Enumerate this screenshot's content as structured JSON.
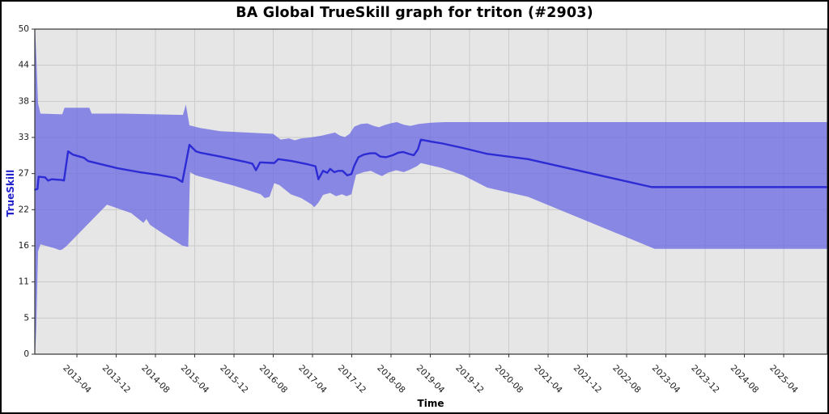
{
  "figure": {
    "title": "BA Global TrueSkill graph for triton (#2903)"
  },
  "chart_data": {
    "type": "line",
    "title": "BA Global TrueSkill graph for triton (#2903)",
    "xlabel": "Time",
    "ylabel": "TrueSkill",
    "legend": "none",
    "grid": true,
    "xlim": [
      2012.535,
      2025.992
    ],
    "ylim": [
      0,
      50
    ],
    "x_ticks": [
      {
        "year": 2013.25,
        "label": "2013-04"
      },
      {
        "year": 2013.9167,
        "label": "2013-12"
      },
      {
        "year": 2014.5833,
        "label": "2014-08"
      },
      {
        "year": 2015.25,
        "label": "2015-04"
      },
      {
        "year": 2015.9167,
        "label": "2015-12"
      },
      {
        "year": 2016.5833,
        "label": "2016-08"
      },
      {
        "year": 2017.25,
        "label": "2017-04"
      },
      {
        "year": 2017.9167,
        "label": "2017-12"
      },
      {
        "year": 2018.5833,
        "label": "2018-08"
      },
      {
        "year": 2019.25,
        "label": "2019-04"
      },
      {
        "year": 2019.9167,
        "label": "2019-12"
      },
      {
        "year": 2020.5833,
        "label": "2020-08"
      },
      {
        "year": 2021.25,
        "label": "2021-04"
      },
      {
        "year": 2021.9167,
        "label": "2021-12"
      },
      {
        "year": 2022.5833,
        "label": "2022-08"
      },
      {
        "year": 2023.25,
        "label": "2023-04"
      },
      {
        "year": 2023.9167,
        "label": "2023-12"
      },
      {
        "year": 2024.5833,
        "label": "2024-08"
      },
      {
        "year": 2025.25,
        "label": "2025-04"
      }
    ],
    "y_ticks": [
      {
        "value": 0,
        "label": "0"
      },
      {
        "value": 5.5556,
        "label": "5"
      },
      {
        "value": 11.1111,
        "label": "11"
      },
      {
        "value": 16.6667,
        "label": "16"
      },
      {
        "value": 22.2222,
        "label": "22"
      },
      {
        "value": 27.7778,
        "label": "27"
      },
      {
        "value": 33.3333,
        "label": "33"
      },
      {
        "value": 38.8889,
        "label": "38"
      },
      {
        "value": 44.4444,
        "label": "44"
      },
      {
        "value": 50,
        "label": "50"
      }
    ],
    "series": [
      {
        "name": "uncertainty-band",
        "type": "band",
        "fill": "rgba(100,98,226,0.72)",
        "top": [
          [
            2012.54,
            50
          ],
          [
            2012.56,
            46
          ],
          [
            2012.59,
            38.6
          ],
          [
            2012.63,
            37.0
          ],
          [
            2013.0,
            36.9
          ],
          [
            2013.04,
            37.9
          ],
          [
            2013.46,
            37.9
          ],
          [
            2013.5,
            37.0
          ],
          [
            2014.03,
            37.0
          ],
          [
            2015.05,
            36.8
          ],
          [
            2015.1,
            38.4
          ],
          [
            2015.16,
            35.2
          ],
          [
            2015.34,
            34.8
          ],
          [
            2015.68,
            34.3
          ],
          [
            2016.58,
            33.9
          ],
          [
            2016.71,
            33.0
          ],
          [
            2016.85,
            33.2
          ],
          [
            2016.95,
            32.9
          ],
          [
            2017.06,
            33.2
          ],
          [
            2017.19,
            33.3
          ],
          [
            2017.4,
            33.6
          ],
          [
            2017.54,
            33.9
          ],
          [
            2017.63,
            34.1
          ],
          [
            2017.72,
            33.6
          ],
          [
            2017.8,
            33.4
          ],
          [
            2017.88,
            33.9
          ],
          [
            2017.96,
            35.0
          ],
          [
            2018.07,
            35.4
          ],
          [
            2018.18,
            35.5
          ],
          [
            2018.29,
            35.1
          ],
          [
            2018.38,
            34.9
          ],
          [
            2018.46,
            35.2
          ],
          [
            2018.57,
            35.5
          ],
          [
            2018.68,
            35.7
          ],
          [
            2018.8,
            35.3
          ],
          [
            2018.91,
            35.1
          ],
          [
            2019.05,
            35.4
          ],
          [
            2019.26,
            35.6
          ],
          [
            2019.5,
            35.7
          ],
          [
            2025.99,
            35.7
          ]
        ],
        "bottom": [
          [
            2012.54,
            0
          ],
          [
            2012.56,
            4
          ],
          [
            2012.59,
            15.8
          ],
          [
            2012.63,
            16.9
          ],
          [
            2012.87,
            16.3
          ],
          [
            2012.96,
            16.0
          ],
          [
            2013.0,
            16.1
          ],
          [
            2013.07,
            16.6
          ],
          [
            2013.76,
            23.0
          ],
          [
            2014.17,
            21.7
          ],
          [
            2014.38,
            20.2
          ],
          [
            2014.43,
            20.8
          ],
          [
            2014.49,
            19.9
          ],
          [
            2014.72,
            18.5
          ],
          [
            2015.04,
            16.7
          ],
          [
            2015.14,
            16.5
          ],
          [
            2015.17,
            28.0
          ],
          [
            2015.27,
            27.5
          ],
          [
            2015.92,
            25.9
          ],
          [
            2016.37,
            24.6
          ],
          [
            2016.44,
            24.0
          ],
          [
            2016.52,
            24.2
          ],
          [
            2016.6,
            26.3
          ],
          [
            2016.69,
            26.0
          ],
          [
            2016.88,
            24.6
          ],
          [
            2017.06,
            24.0
          ],
          [
            2017.24,
            23.0
          ],
          [
            2017.28,
            22.6
          ],
          [
            2017.35,
            23.3
          ],
          [
            2017.43,
            24.5
          ],
          [
            2017.55,
            24.8
          ],
          [
            2017.65,
            24.3
          ],
          [
            2017.75,
            24.6
          ],
          [
            2017.83,
            24.3
          ],
          [
            2017.91,
            24.6
          ],
          [
            2017.99,
            27.6
          ],
          [
            2018.12,
            28.0
          ],
          [
            2018.24,
            28.2
          ],
          [
            2018.35,
            27.7
          ],
          [
            2018.43,
            27.4
          ],
          [
            2018.53,
            27.9
          ],
          [
            2018.67,
            28.3
          ],
          [
            2018.8,
            28.0
          ],
          [
            2018.91,
            28.4
          ],
          [
            2019.02,
            28.9
          ],
          [
            2019.09,
            29.4
          ],
          [
            2019.46,
            28.6
          ],
          [
            2019.81,
            27.5
          ],
          [
            2020.22,
            25.6
          ],
          [
            2020.91,
            24.2
          ],
          [
            2023.06,
            16.2
          ],
          [
            2025.99,
            16.2
          ]
        ]
      },
      {
        "name": "trueskill-mean",
        "type": "line",
        "color": "#2d2bd4",
        "width": 2.4,
        "points": [
          [
            2012.54,
            25.3
          ],
          [
            2012.58,
            25.4
          ],
          [
            2012.6,
            27.3
          ],
          [
            2012.71,
            27.2
          ],
          [
            2012.76,
            26.7
          ],
          [
            2012.82,
            26.9
          ],
          [
            2012.99,
            26.8
          ],
          [
            2013.03,
            26.7
          ],
          [
            2013.1,
            31.2
          ],
          [
            2013.18,
            30.7
          ],
          [
            2013.37,
            30.2
          ],
          [
            2013.44,
            29.7
          ],
          [
            2013.94,
            28.6
          ],
          [
            2014.31,
            28.0
          ],
          [
            2014.62,
            27.6
          ],
          [
            2014.93,
            27.1
          ],
          [
            2015.04,
            26.5
          ],
          [
            2015.16,
            32.2
          ],
          [
            2015.27,
            31.2
          ],
          [
            2015.34,
            31.0
          ],
          [
            2015.68,
            30.4
          ],
          [
            2016.1,
            29.6
          ],
          [
            2016.23,
            29.3
          ],
          [
            2016.29,
            28.3
          ],
          [
            2016.36,
            29.5
          ],
          [
            2016.6,
            29.4
          ],
          [
            2016.67,
            30.0
          ],
          [
            2016.9,
            29.7
          ],
          [
            2017.17,
            29.2
          ],
          [
            2017.3,
            28.9
          ],
          [
            2017.35,
            26.9
          ],
          [
            2017.43,
            28.2
          ],
          [
            2017.5,
            27.9
          ],
          [
            2017.55,
            28.5
          ],
          [
            2017.62,
            28.0
          ],
          [
            2017.69,
            28.2
          ],
          [
            2017.76,
            28.2
          ],
          [
            2017.84,
            27.5
          ],
          [
            2017.91,
            27.7
          ],
          [
            2017.96,
            29.0
          ],
          [
            2018.03,
            30.3
          ],
          [
            2018.12,
            30.7
          ],
          [
            2018.23,
            30.9
          ],
          [
            2018.32,
            30.9
          ],
          [
            2018.4,
            30.4
          ],
          [
            2018.5,
            30.3
          ],
          [
            2018.61,
            30.6
          ],
          [
            2018.71,
            31.0
          ],
          [
            2018.79,
            31.1
          ],
          [
            2018.89,
            30.8
          ],
          [
            2018.97,
            30.6
          ],
          [
            2019.04,
            31.5
          ],
          [
            2019.09,
            33.0
          ],
          [
            2019.26,
            32.7
          ],
          [
            2019.46,
            32.4
          ],
          [
            2019.81,
            31.7
          ],
          [
            2020.22,
            30.8
          ],
          [
            2020.91,
            30.0
          ],
          [
            2023.01,
            25.7
          ],
          [
            2025.99,
            25.7
          ]
        ]
      }
    ],
    "colors": {
      "figure_background": "#ffffff",
      "outer_border": "#000000",
      "plot_background": "#e6e6e6",
      "gridline": "#cbcbcb",
      "frame": "#333333",
      "band": "rgba(100,98,226,0.72)",
      "line": "#2d2bd4",
      "ylabel": "#2222cc",
      "tick_label": "#1a1a1a"
    }
  }
}
